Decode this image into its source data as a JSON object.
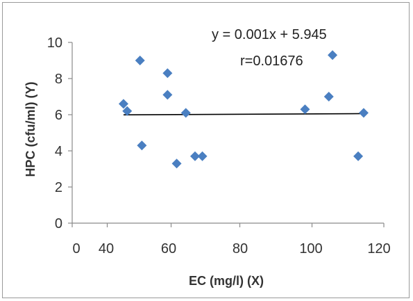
{
  "chart_data": {
    "type": "scatter",
    "xlabel": "EC (mg/l) (X)",
    "ylabel": "HPC (cfu/ml) (Y)",
    "x_tick_labels": [
      "0",
      "40",
      "60",
      "80",
      "100",
      "120"
    ],
    "y_ticks": [
      0,
      2,
      4,
      6,
      8,
      10
    ],
    "xlim": [
      35,
      120
    ],
    "ylim": [
      0,
      10
    ],
    "grid": false,
    "legend": "none",
    "marker_color": "#4a7fc1",
    "trendline_color": "#000000",
    "points": [
      {
        "x": 49,
        "y": 6.6
      },
      {
        "x": 50,
        "y": 6.2
      },
      {
        "x": 53.5,
        "y": 9.0
      },
      {
        "x": 54,
        "y": 4.3
      },
      {
        "x": 61,
        "y": 8.3
      },
      {
        "x": 61,
        "y": 7.1
      },
      {
        "x": 63.5,
        "y": 3.3
      },
      {
        "x": 66,
        "y": 6.1
      },
      {
        "x": 68.5,
        "y": 3.7
      },
      {
        "x": 70.5,
        "y": 3.7
      },
      {
        "x": 98.5,
        "y": 6.3
      },
      {
        "x": 105,
        "y": 7.0
      },
      {
        "x": 106,
        "y": 9.3
      },
      {
        "x": 113,
        "y": 3.7
      },
      {
        "x": 114.5,
        "y": 6.1
      }
    ],
    "trendline": {
      "x": [
        49,
        114.5
      ],
      "y": [
        5.994,
        6.0595
      ]
    },
    "annotations": {
      "equation": "y = 0.001x + 5.945",
      "r": "r=0.01676"
    }
  }
}
